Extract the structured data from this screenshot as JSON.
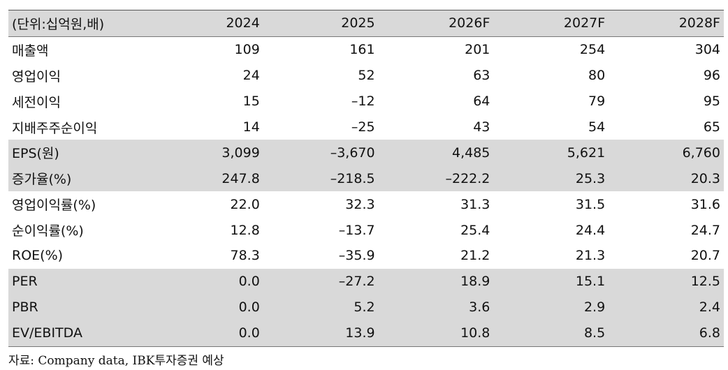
{
  "table": {
    "headers": [
      "(단위:십억원,배)",
      "2024",
      "2025",
      "2026F",
      "2027F",
      "2028F"
    ],
    "rows": [
      {
        "label": "매출액",
        "values": [
          "109",
          "161",
          "201",
          "254",
          "304"
        ],
        "shaded": false
      },
      {
        "label": "영업이익",
        "values": [
          "24",
          "52",
          "63",
          "80",
          "96"
        ],
        "shaded": false
      },
      {
        "label": "세전이익",
        "values": [
          "15",
          "–12",
          "64",
          "79",
          "95"
        ],
        "shaded": false
      },
      {
        "label": "지배주주순이익",
        "values": [
          "14",
          "–25",
          "43",
          "54",
          "65"
        ],
        "shaded": false
      },
      {
        "label": "EPS(원)",
        "values": [
          "3,099",
          "–3,670",
          "4,485",
          "5,621",
          "6,760"
        ],
        "shaded": true
      },
      {
        "label": "증가율(%)",
        "values": [
          "247.8",
          "–218.5",
          "–222.2",
          "25.3",
          "20.3"
        ],
        "shaded": true
      },
      {
        "label": "영업이익률(%)",
        "values": [
          "22.0",
          "32.3",
          "31.3",
          "31.5",
          "31.6"
        ],
        "shaded": false
      },
      {
        "label": "순이익률(%)",
        "values": [
          "12.8",
          "–13.7",
          "25.4",
          "24.4",
          "24.7"
        ],
        "shaded": false
      },
      {
        "label": "ROE(%)",
        "values": [
          "78.3",
          "–35.9",
          "21.2",
          "21.3",
          "20.7"
        ],
        "shaded": false
      },
      {
        "label": "PER",
        "values": [
          "0.0",
          "–27.2",
          "18.9",
          "15.1",
          "12.5"
        ],
        "shaded": true
      },
      {
        "label": "PBR",
        "values": [
          "0.0",
          "5.2",
          "3.6",
          "2.9",
          "2.4"
        ],
        "shaded": true
      },
      {
        "label": "EV/EBITDA",
        "values": [
          "0.0",
          "13.9",
          "10.8",
          "8.5",
          "6.8"
        ],
        "shaded": true
      }
    ]
  },
  "source": "자료: Company data, IBK투자증권 예상",
  "colors": {
    "shade": "#d9d9d9",
    "rule": "#555555"
  }
}
